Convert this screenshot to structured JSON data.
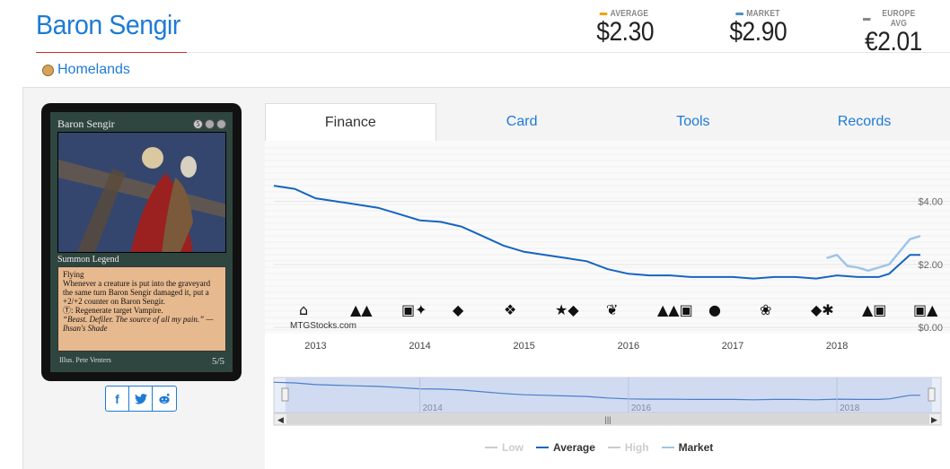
{
  "card": {
    "title": "Baron Sengir",
    "set_name": "Homelands",
    "image": {
      "name": "Baron Sengir",
      "mana": [
        "5",
        "",
        ""
      ],
      "type_line": "Summon Legend",
      "rules": [
        "Flying",
        "Whenever a creature is put into the graveyard the same turn Baron Sengir damaged it, put a +2/+2 counter on Baron Sengir.",
        "Ⓣ: Regenerate target Vampire."
      ],
      "flavor": "“Beast. Defiler. The source of all my pain.” —Ihsan's Shade",
      "illus": "Illus. Pete Venters",
      "pt": "5/5"
    }
  },
  "prices": {
    "average": {
      "label": "AVERAGE",
      "value": "$2.30",
      "color": "#f0a30a"
    },
    "market": {
      "label": "MARKET",
      "value": "$2.90",
      "color": "#4a90c8"
    },
    "europe": {
      "label": "EUROPE AVG",
      "value": "€2.01",
      "color": "#888888"
    }
  },
  "share": {
    "facebook": "f",
    "twitter": "✦",
    "reddit": "●"
  },
  "tabs": [
    {
      "label": "Finance",
      "active": true
    },
    {
      "label": "Card",
      "active": false
    },
    {
      "label": "Tools",
      "active": false
    },
    {
      "label": "Records",
      "active": false
    }
  ],
  "chart_data": {
    "type": "line",
    "title": "",
    "xlabel": "",
    "ylabel": "",
    "watermark": "MTGStocks.com",
    "x_ticks": [
      "2013",
      "2014",
      "2015",
      "2016",
      "2017",
      "2018"
    ],
    "y_ticks": [
      "$4.00",
      "$2.00",
      "$0.00"
    ],
    "ylim": [
      0,
      5.5
    ],
    "xlim": [
      2012.6,
      2018.8
    ],
    "navigator_ticks": [
      "2014",
      "2016",
      "2018"
    ],
    "series": [
      {
        "name": "Average",
        "color": "#1565c0",
        "x": [
          2012.6,
          2012.8,
          2013.0,
          2013.2,
          2013.4,
          2013.6,
          2013.8,
          2014.0,
          2014.2,
          2014.4,
          2014.6,
          2014.8,
          2015.0,
          2015.2,
          2015.4,
          2015.6,
          2015.8,
          2016.0,
          2016.2,
          2016.4,
          2016.6,
          2016.8,
          2017.0,
          2017.2,
          2017.4,
          2017.6,
          2017.8,
          2018.0,
          2018.2,
          2018.4,
          2018.5,
          2018.6,
          2018.7,
          2018.8
        ],
        "values": [
          4.5,
          4.4,
          4.1,
          4.0,
          3.9,
          3.8,
          3.6,
          3.4,
          3.35,
          3.2,
          2.9,
          2.6,
          2.4,
          2.3,
          2.2,
          2.1,
          1.85,
          1.7,
          1.65,
          1.65,
          1.6,
          1.6,
          1.6,
          1.55,
          1.6,
          1.6,
          1.55,
          1.65,
          1.6,
          1.6,
          1.7,
          2.0,
          2.3,
          2.3
        ]
      },
      {
        "name": "Market",
        "color": "#9ec5e8",
        "x": [
          2017.9,
          2018.0,
          2018.1,
          2018.2,
          2018.3,
          2018.4,
          2018.5,
          2018.6,
          2018.7,
          2018.8
        ],
        "values": [
          2.2,
          2.3,
          1.95,
          1.9,
          1.8,
          1.9,
          2.0,
          2.4,
          2.8,
          2.9
        ]
      }
    ],
    "legend": [
      {
        "name": "Low",
        "color": "#cccccc",
        "text_color": "#cccccc"
      },
      {
        "name": "Average",
        "color": "#1565c0",
        "text_color": "#333333"
      },
      {
        "name": "High",
        "color": "#cccccc",
        "text_color": "#cccccc"
      },
      {
        "name": "Market",
        "color": "#9ec5e8",
        "text_color": "#333333"
      }
    ],
    "legend_position": "bottom-center",
    "grid": true
  }
}
